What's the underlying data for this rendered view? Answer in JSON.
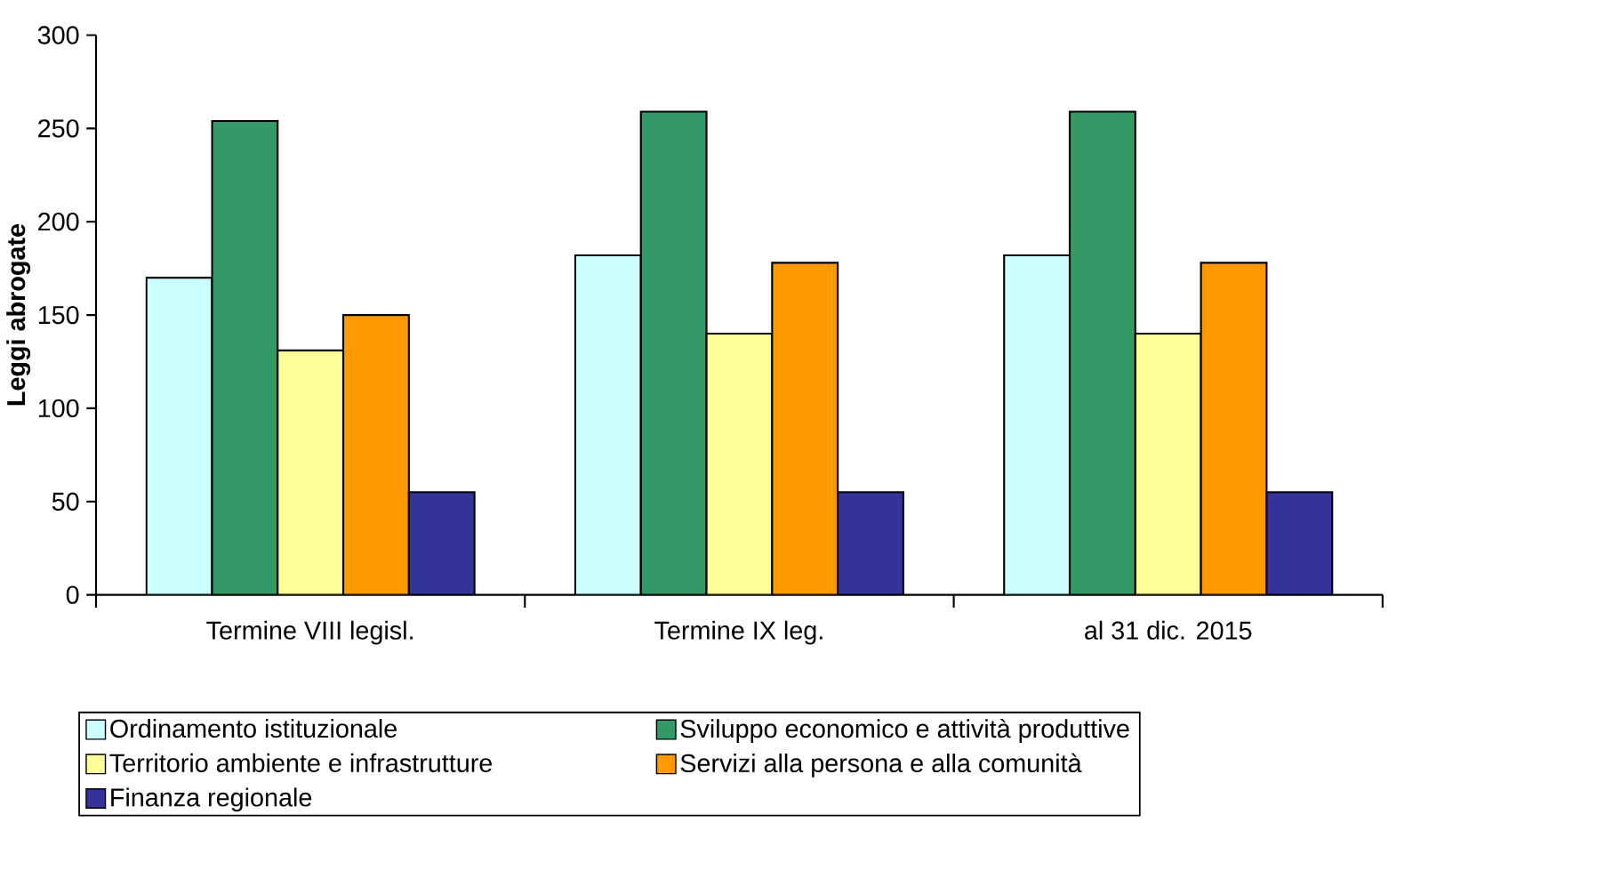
{
  "chart_data": {
    "type": "bar",
    "ylabel": "Leggi abrogate",
    "categories": [
      "Termine VIII legisl.",
      "Termine IX leg.",
      "al  31 dic. 2015"
    ],
    "series": [
      {
        "name": "Ordinamento istituzionale",
        "color": "#ccffff",
        "values": [
          170,
          182,
          182
        ]
      },
      {
        "name": "Sviluppo economico e attività produttive",
        "color": "#339966",
        "values": [
          254,
          259,
          259
        ]
      },
      {
        "name": "Territorio ambiente e infrastrutture",
        "color": "#ffff99",
        "values": [
          131,
          140,
          140
        ]
      },
      {
        "name": "Servizi alla persona e alla comunità",
        "color": "#ff9900",
        "values": [
          150,
          178,
          178
        ]
      },
      {
        "name": "Finanza regionale",
        "color": "#333399",
        "values": [
          55,
          55,
          55
        ]
      }
    ],
    "ylim": [
      0,
      300
    ],
    "yticks": [
      0,
      50,
      100,
      150,
      200,
      250,
      300
    ],
    "legend": "bottom"
  }
}
